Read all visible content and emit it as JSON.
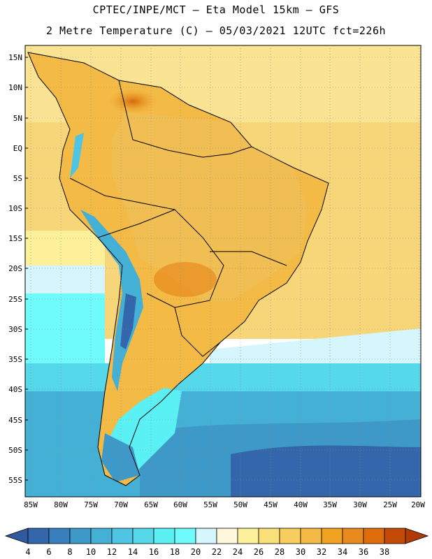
{
  "header": {
    "line1": "CPTEC/INPE/MCT –  Eta Model 15km – GFS",
    "line2": "2 Metre Temperature (C) – 05/03/2021 12UTC fct=226h"
  },
  "axes": {
    "lat_labels": [
      "15N",
      "10N",
      "5N",
      "EQ",
      "5S",
      "10S",
      "15S",
      "20S",
      "25S",
      "30S",
      "35S",
      "40S",
      "45S",
      "50S",
      "55S"
    ],
    "lon_labels": [
      "85W",
      "80W",
      "75W",
      "70W",
      "65W",
      "60W",
      "55W",
      "50W",
      "45W",
      "40W",
      "35W",
      "30W",
      "25W",
      "20W"
    ]
  },
  "colorbar": {
    "labels": [
      "4",
      "6",
      "8",
      "10",
      "12",
      "14",
      "16",
      "18",
      "20",
      "22",
      "24",
      "26",
      "28",
      "30",
      "32",
      "34",
      "36",
      "38"
    ],
    "colors": [
      "#3366aa",
      "#3a7fbd",
      "#3f99c8",
      "#44b0d6",
      "#4ec6e3",
      "#55d8ea",
      "#5af0f4",
      "#6ffafc",
      "#d4f6fc",
      "#fff8dc",
      "#fdf09a",
      "#fbe07a",
      "#f7cd5e",
      "#f3ba45",
      "#f0a322",
      "#e88a1e",
      "#e06d0c",
      "#c44a08"
    ],
    "under_color": "#2f5aa0",
    "over_color": "#b03a06"
  }
}
